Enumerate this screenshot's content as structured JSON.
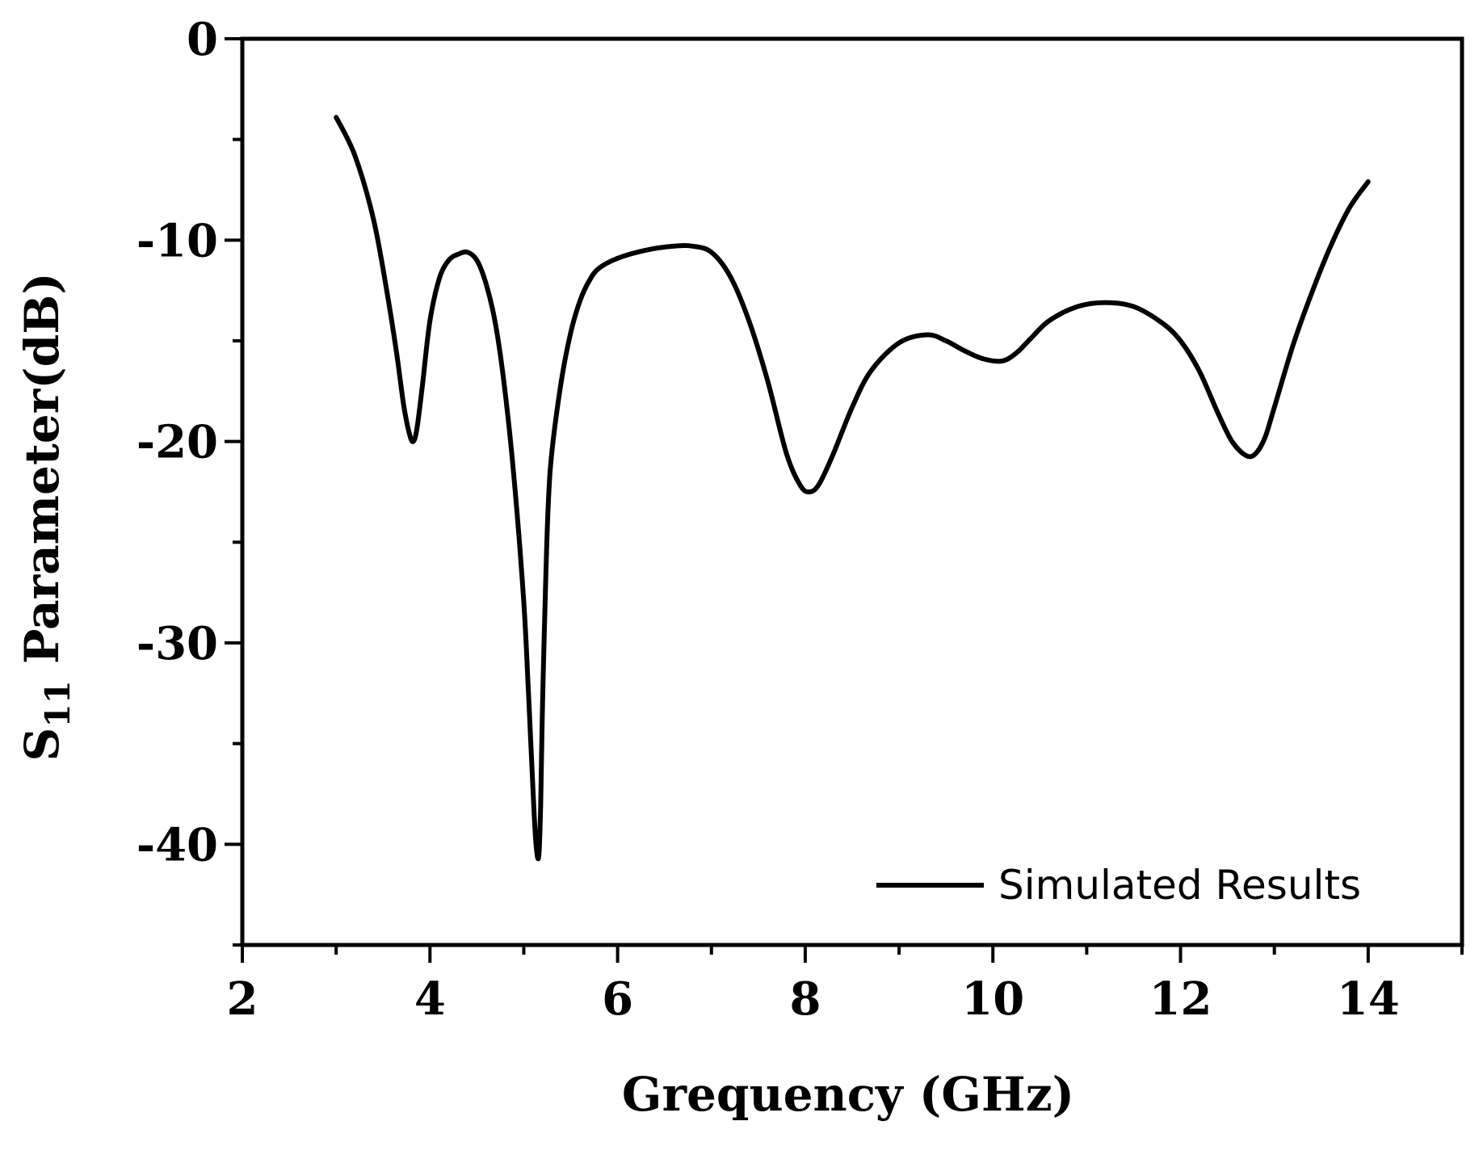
{
  "chart_data": {
    "type": "line",
    "xlabel": "Grequency (GHz)",
    "ylabel_main": "S",
    "ylabel_sub": "11",
    "ylabel_rest": " Parameter(dB)",
    "xlim": [
      2,
      15
    ],
    "ylim": [
      -45,
      0
    ],
    "x_ticks": [
      2,
      4,
      6,
      8,
      10,
      12,
      14
    ],
    "y_ticks": [
      0,
      -10,
      -20,
      -30,
      -40
    ],
    "grid": false,
    "legend_position": "bottom-right",
    "line_color": "#000000",
    "series": [
      {
        "name": "Simulated Results",
        "x": [
          3.0,
          3.2,
          3.4,
          3.55,
          3.65,
          3.72,
          3.78,
          3.82,
          3.86,
          3.92,
          4.0,
          4.1,
          4.2,
          4.3,
          4.4,
          4.5,
          4.6,
          4.7,
          4.8,
          4.9,
          5.0,
          5.05,
          5.1,
          5.13,
          5.16,
          5.18,
          5.2,
          5.23,
          5.26,
          5.3,
          5.4,
          5.5,
          5.6,
          5.7,
          5.8,
          6.0,
          6.3,
          6.6,
          6.8,
          7.0,
          7.2,
          7.4,
          7.6,
          7.8,
          7.95,
          8.05,
          8.15,
          8.3,
          8.5,
          8.7,
          9.0,
          9.3,
          9.5,
          9.7,
          9.9,
          10.1,
          10.25,
          10.4,
          10.6,
          10.9,
          11.2,
          11.5,
          11.8,
          12.0,
          12.2,
          12.4,
          12.55,
          12.7,
          12.8,
          12.9,
          13.0,
          13.2,
          13.4,
          13.6,
          13.8,
          14.0
        ],
        "y": [
          -3.9,
          -5.8,
          -9.0,
          -12.8,
          -15.8,
          -18.2,
          -19.6,
          -20.0,
          -19.4,
          -17.2,
          -14.0,
          -11.9,
          -11.0,
          -10.7,
          -10.6,
          -11.0,
          -12.2,
          -14.2,
          -17.5,
          -22.0,
          -28.0,
          -32.5,
          -37.5,
          -40.0,
          -40.6,
          -38.0,
          -33.0,
          -27.5,
          -23.2,
          -20.5,
          -17.0,
          -14.6,
          -13.0,
          -12.0,
          -11.4,
          -10.9,
          -10.5,
          -10.3,
          -10.3,
          -10.6,
          -11.8,
          -14.0,
          -17.0,
          -20.6,
          -22.2,
          -22.5,
          -22.1,
          -20.6,
          -18.3,
          -16.5,
          -15.1,
          -14.7,
          -15.0,
          -15.5,
          -15.9,
          -16.0,
          -15.6,
          -14.9,
          -14.0,
          -13.3,
          -13.1,
          -13.3,
          -14.1,
          -15.0,
          -16.5,
          -18.6,
          -20.0,
          -20.7,
          -20.6,
          -19.8,
          -18.3,
          -15.2,
          -12.6,
          -10.3,
          -8.4,
          -7.1
        ]
      }
    ]
  }
}
